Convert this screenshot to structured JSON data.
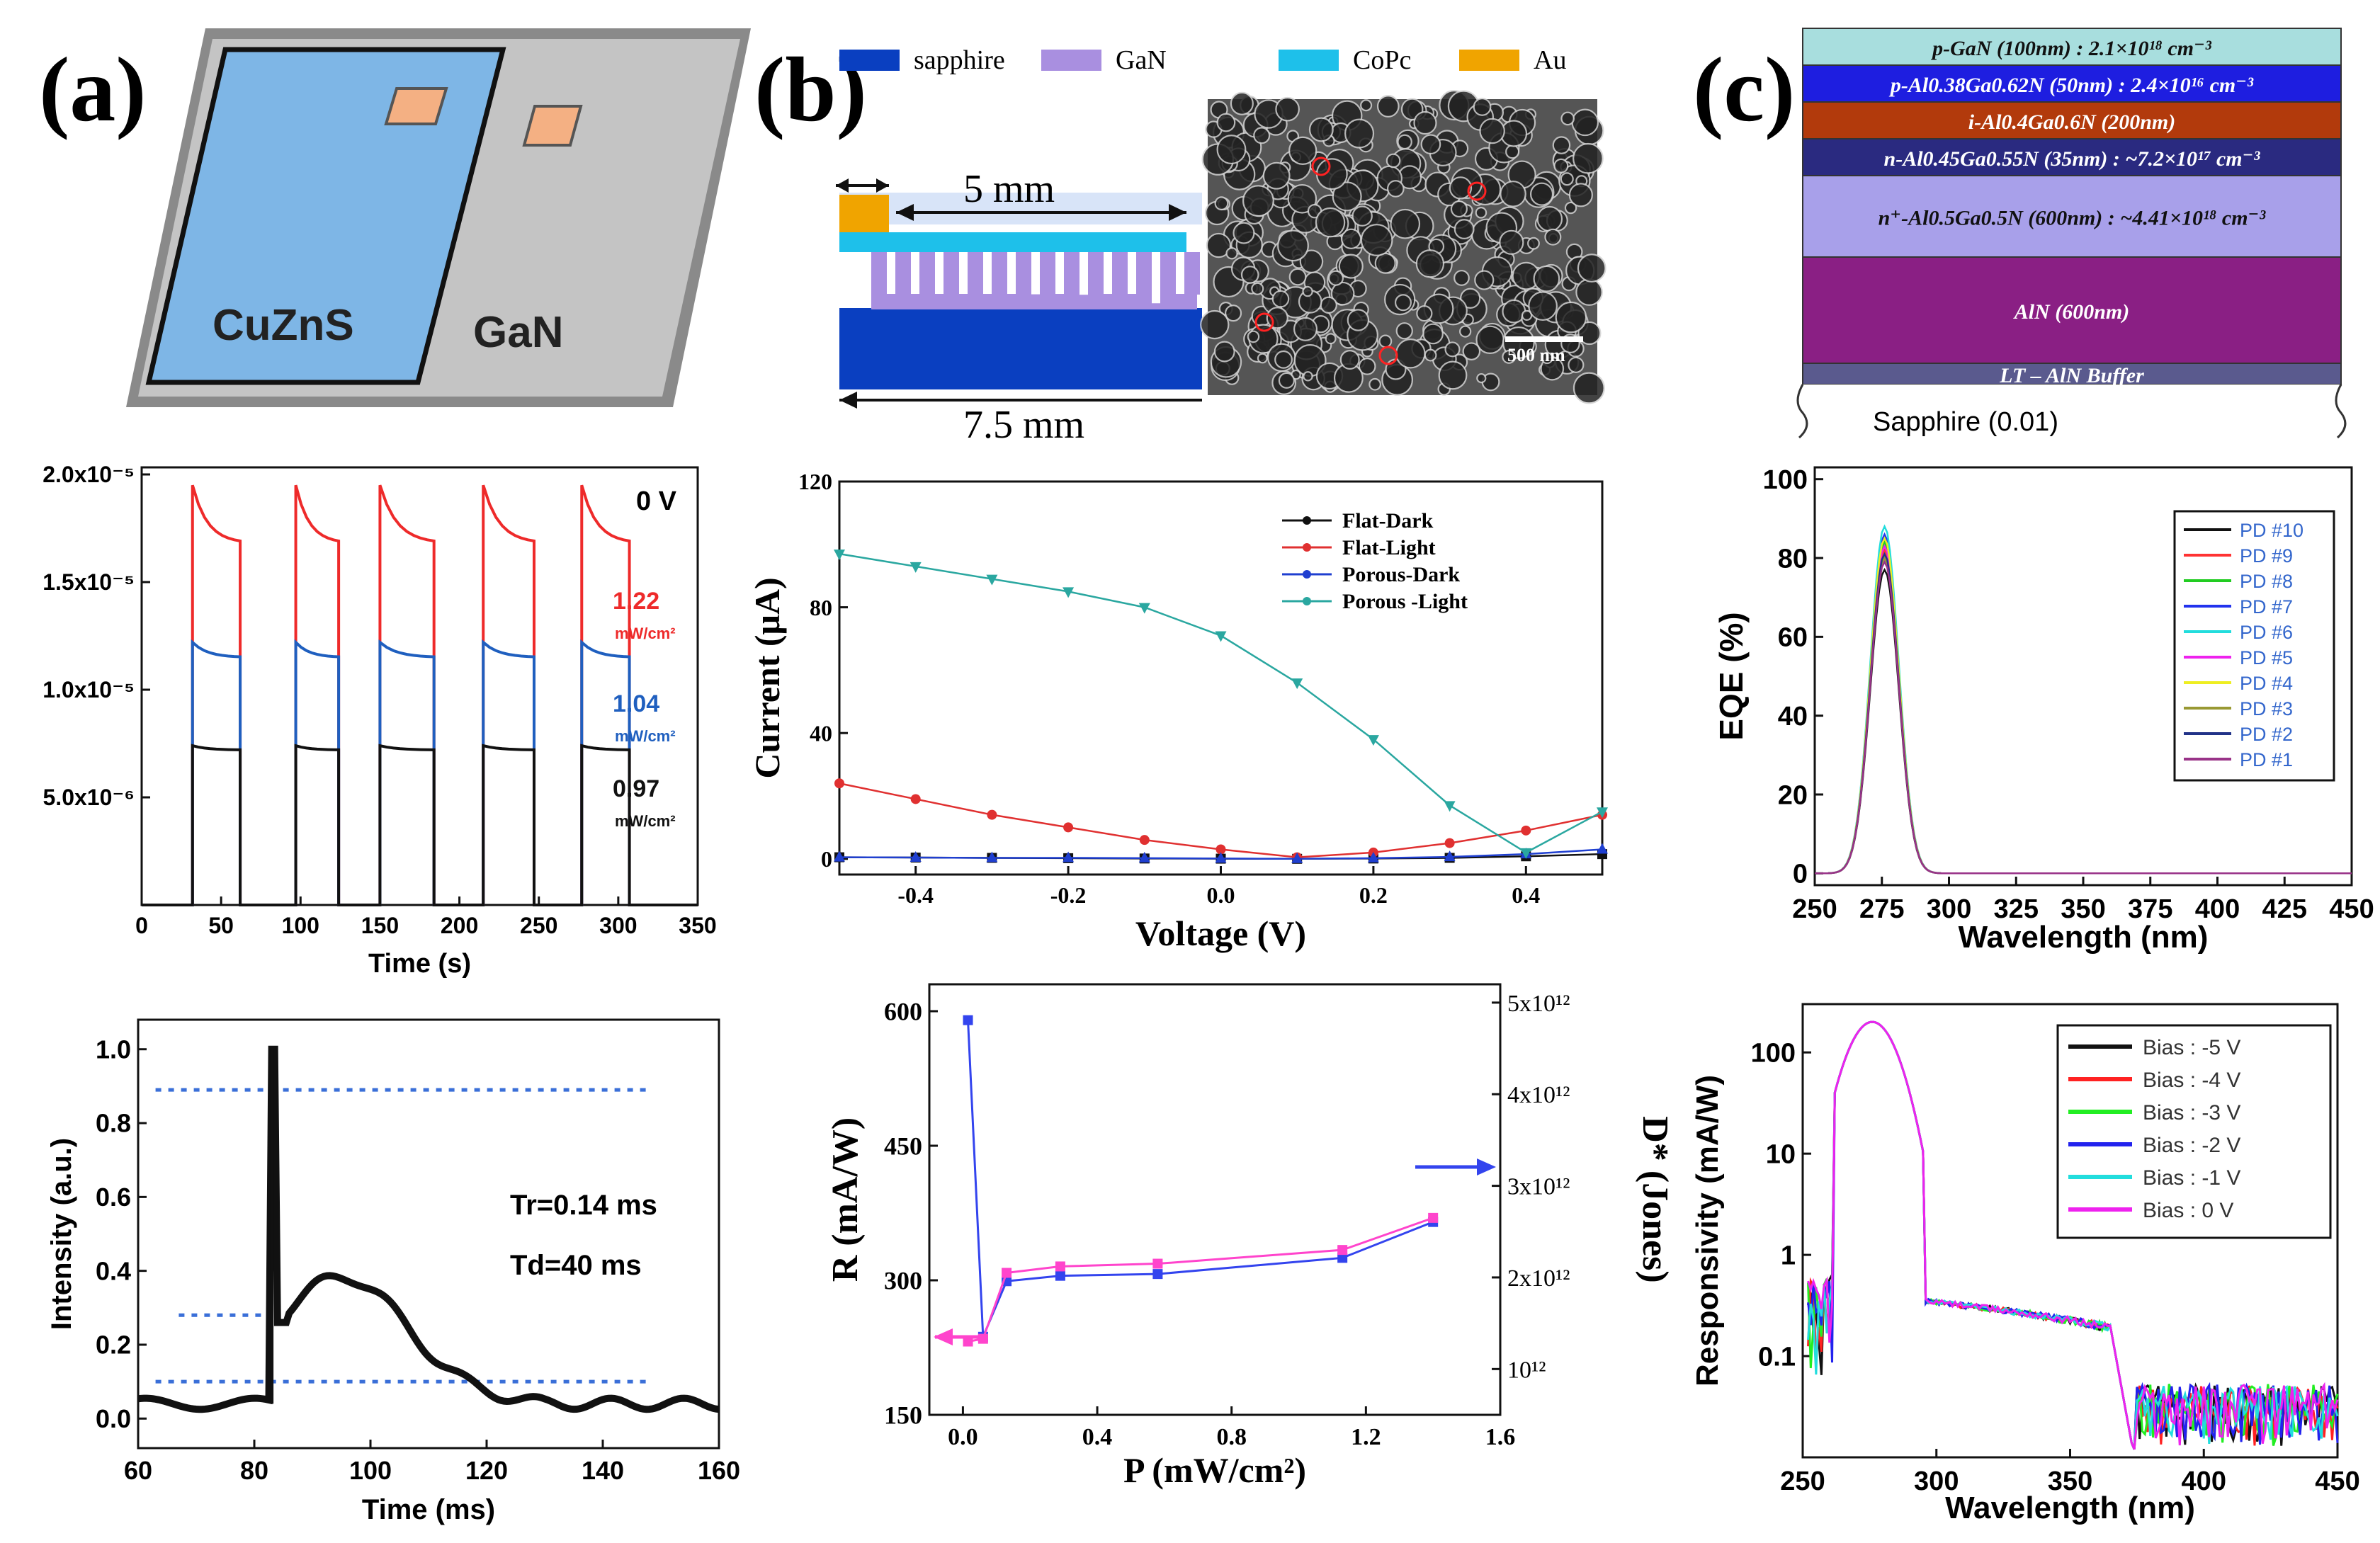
{
  "labels": {
    "a": "(a)",
    "b": "(b)",
    "c": "(c)"
  },
  "device_a": {
    "left_label": "CuZnS",
    "right_label": "GaN"
  },
  "device_b": {
    "legend": [
      "sapphire",
      "GaN",
      "CoPc",
      "Au"
    ],
    "dim_top": "5 mm",
    "dim_bottom": "7.5 mm",
    "sem_scalebar": "500 nm"
  },
  "layers_c": {
    "layers": [
      {
        "text": "p-GaN (100nm) : 2.1×10¹⁸ cm⁻³",
        "color": "#a8dede",
        "text_color": "#111111"
      },
      {
        "text": "p-Al0.38Ga0.62N (50nm) : 2.4×10¹⁶ cm⁻³",
        "color": "#1e1ee0",
        "text_color": "#ffffff"
      },
      {
        "text": "i-Al0.4Ga0.6N (200nm)",
        "color": "#b23a0c",
        "text_color": "#ffffff"
      },
      {
        "text": "n-Al0.45Ga0.55N (35nm) : ~7.2×10¹⁷ cm⁻³",
        "color": "#2a2a80",
        "text_color": "#ffffff"
      },
      {
        "text": "n⁺-Al0.5Ga0.5N (600nm) : ~4.41×10¹⁸ cm⁻³",
        "color": "#a8a0ea",
        "text_color": "#111111"
      },
      {
        "text": "AlN (600nm)",
        "color": "#8a1f84",
        "text_color": "#ffffff"
      },
      {
        "text": "LT – AlN Buffer",
        "color": "#5a5a8e",
        "text_color": "#ffffff"
      }
    ],
    "substrate": "Sapphire (0.01)"
  },
  "chart_data": [
    {
      "id": "a-mid",
      "type": "line",
      "xlabel": "Time (s)",
      "ylabel": "",
      "xlim": [
        0,
        350
      ],
      "ylim": [
        0,
        2e-05
      ],
      "xticks": [
        "0",
        "50",
        "100",
        "150",
        "200",
        "250",
        "300",
        "350"
      ],
      "yticks": [
        "5.0x10⁻⁶",
        "1.0x10⁻⁵",
        "1.5x10⁻⁵",
        "2.0x10⁻⁵"
      ],
      "corner_label": "0 V",
      "on_intervals": [
        [
          32,
          62
        ],
        [
          97,
          124
        ],
        [
          150,
          184
        ],
        [
          215,
          247
        ],
        [
          277,
          307
        ]
      ],
      "series": [
        {
          "name": "1.22 mW/cm²",
          "value_label": "1.22",
          "unit_label": "mW/cm²",
          "color": "#ee2a2a",
          "peak": 1.95e-05,
          "plateau": 1.68e-05
        },
        {
          "name": "1.04 mW/cm²",
          "value_label": "1.04",
          "unit_label": "mW/cm²",
          "color": "#1f5fbf",
          "peak": 1.22e-05,
          "plateau": 1.15e-05
        },
        {
          "name": "0.97 mW/cm²",
          "value_label": "0.97",
          "unit_label": "mW/cm²",
          "color": "#111111",
          "peak": 7.4e-06,
          "plateau": 7.2e-06
        }
      ]
    },
    {
      "id": "a-bot",
      "type": "line",
      "xlabel": "Time (ms)",
      "ylabel": "Intensity (a.u.)",
      "xlim": [
        60,
        160
      ],
      "ylim": [
        -0.08,
        1.08
      ],
      "xticks": [
        60,
        80,
        100,
        120,
        140,
        160
      ],
      "yticks": [
        "0.0",
        "0.2",
        "0.4",
        "0.6",
        "0.8",
        "1.0"
      ],
      "hlines": [
        0.89,
        0.28,
        0.1
      ],
      "annotations": [
        "Tr=0.14 ms",
        "Td=40 ms"
      ],
      "rise_x": 83,
      "series": [
        {
          "name": "response",
          "color": "#111111"
        }
      ]
    },
    {
      "id": "b-mid",
      "type": "line",
      "xlabel": "Voltage  (V)",
      "ylabel": "Current (μA)",
      "xlim": [
        -0.5,
        0.5
      ],
      "ylim": [
        -5,
        120
      ],
      "xticks": [
        "-0.4",
        "-0.2",
        "0.0",
        "0.2",
        "0.4"
      ],
      "xtick_vals": [
        -0.4,
        -0.2,
        0.0,
        0.2,
        0.4
      ],
      "yticks": [
        0,
        40,
        80,
        120
      ],
      "x": [
        -0.5,
        -0.4,
        -0.3,
        -0.2,
        -0.1,
        0.0,
        0.1,
        0.2,
        0.3,
        0.4,
        0.5
      ],
      "series": [
        {
          "name": "Flat-Dark",
          "color": "#111111",
          "marker": "square",
          "values": [
            0.5,
            0.4,
            0.3,
            0.2,
            0.1,
            0.05,
            0.0,
            0.1,
            0.3,
            0.8,
            1.5
          ]
        },
        {
          "name": "Flat-Light",
          "color": "#e03030",
          "marker": "circle",
          "values": [
            24,
            19,
            14,
            10,
            6,
            3,
            0.5,
            2,
            5,
            9,
            14
          ]
        },
        {
          "name": "Porous-Dark",
          "color": "#1f3fd0",
          "marker": "triangle-up",
          "values": [
            0.5,
            0.4,
            0.3,
            0.3,
            0.2,
            0.1,
            0.0,
            0.2,
            0.6,
            1.5,
            3.0
          ]
        },
        {
          "name": "Porous -Light",
          "color": "#2aa7a0",
          "marker": "triangle-down",
          "values": [
            97,
            93,
            89,
            85,
            80,
            71,
            56,
            38,
            17,
            2,
            15
          ]
        }
      ]
    },
    {
      "id": "b-bot",
      "type": "line",
      "xlabel": "P (mW/cm²)",
      "ylabel": "R (mA/W)",
      "ylabel_right": "D* (Jones)",
      "xlim": [
        -0.1,
        1.6
      ],
      "ylim": [
        150,
        630
      ],
      "xticks": [
        "0.0",
        "0.4",
        "0.8",
        "1.2",
        "1.6"
      ],
      "xtick_vals": [
        0.0,
        0.4,
        0.8,
        1.2,
        1.6
      ],
      "yticks": [
        150,
        300,
        450,
        600
      ],
      "yticks_right": [
        "10¹²",
        "2x10¹²",
        "3x10¹²",
        "4x10¹²",
        "5x10¹²"
      ],
      "x": [
        0.015,
        0.06,
        0.13,
        0.29,
        0.58,
        1.13,
        1.4
      ],
      "series": [
        {
          "name": "R",
          "axis": "left",
          "color": "#3344ee",
          "values": [
            590,
            237,
            299,
            305,
            307,
            325,
            365
          ]
        },
        {
          "name": "D*",
          "axis": "right",
          "color": "#ff44cc",
          "values_label": "Jones",
          "values": [
            1300000000000.0,
            1330000000000.0,
            2050000000000.0,
            2120000000000.0,
            2150000000000.0,
            2300000000000.0,
            2650000000000.0
          ]
        }
      ]
    },
    {
      "id": "c-mid",
      "type": "line",
      "xlabel": "Wavelength (nm)",
      "ylabel": "EQE (%)",
      "xlim": [
        250,
        450
      ],
      "ylim": [
        -3,
        103
      ],
      "xticks": [
        250,
        275,
        300,
        325,
        350,
        375,
        400,
        425,
        450
      ],
      "yticks": [
        0,
        20,
        40,
        60,
        80,
        100
      ],
      "peak_x": 276,
      "series": [
        {
          "name": "PD #10",
          "color": "#111111",
          "peak": 77
        },
        {
          "name": "PD #9",
          "color": "#ff3333",
          "peak": 82
        },
        {
          "name": "PD #8",
          "color": "#22cc22",
          "peak": 84
        },
        {
          "name": "PD #7",
          "color": "#2233ee",
          "peak": 86
        },
        {
          "name": "PD #6",
          "color": "#22dddd",
          "peak": 88
        },
        {
          "name": "PD #5",
          "color": "#ee22ee",
          "peak": 83
        },
        {
          "name": "PD #4",
          "color": "#eeee22",
          "peak": 85
        },
        {
          "name": "PD #3",
          "color": "#999933",
          "peak": 80
        },
        {
          "name": "PD #2",
          "color": "#223388",
          "peak": 81
        },
        {
          "name": "PD #1",
          "color": "#993388",
          "peak": 79
        }
      ]
    },
    {
      "id": "c-bot",
      "type": "line",
      "xlabel": "Wavelength (nm)",
      "ylabel": "Responsivity (mA/W)",
      "xlim": [
        250,
        450
      ],
      "ylim_log": [
        0.01,
        300
      ],
      "xticks": [
        250,
        300,
        350,
        400,
        450
      ],
      "yticks": [
        "0.1",
        "1",
        "10",
        "100"
      ],
      "ytick_vals": [
        0.1,
        1,
        10,
        100
      ],
      "peak_x": 276,
      "peak_value": 200,
      "series": [
        {
          "name": "Bias : -5 V",
          "color": "#111111"
        },
        {
          "name": "Bias : -4 V",
          "color": "#ff2222"
        },
        {
          "name": "Bias : -3 V",
          "color": "#22ee22"
        },
        {
          "name": "Bias : -2 V",
          "color": "#2222ee"
        },
        {
          "name": "Bias : -1 V",
          "color": "#22dddd"
        },
        {
          "name": "Bias : 0 V",
          "color": "#ee22ee"
        }
      ]
    }
  ]
}
